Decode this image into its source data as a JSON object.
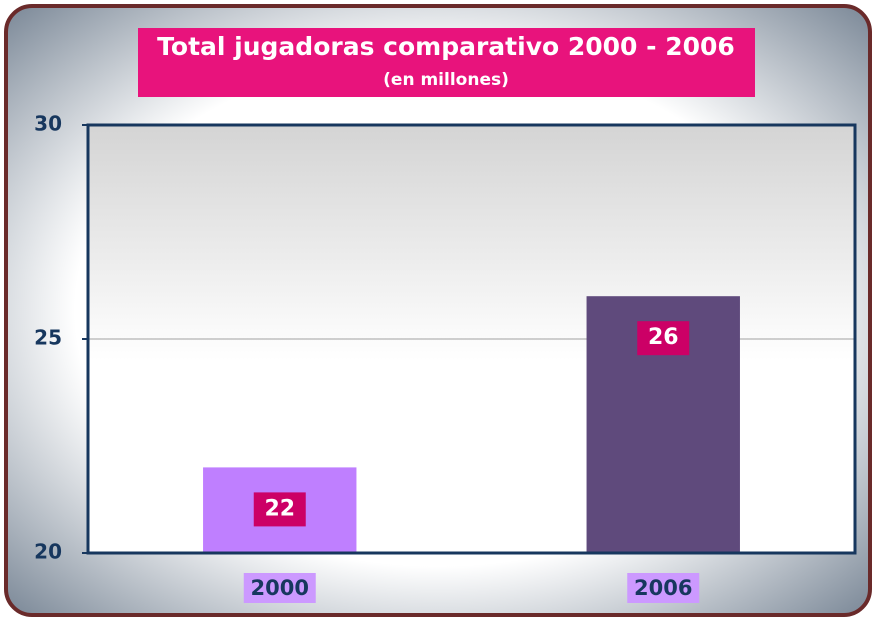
{
  "chart_data": {
    "type": "bar",
    "title": "Total jugadoras comparativo 2000 - 2006",
    "subtitle": "(en millones)",
    "categories": [
      "2000",
      "2006"
    ],
    "values": [
      22,
      26
    ],
    "colors": [
      "#bf7fff",
      "#5f4a7c"
    ],
    "ylim": [
      20,
      30
    ],
    "yticks": [
      20,
      25,
      30
    ],
    "grid": true
  }
}
